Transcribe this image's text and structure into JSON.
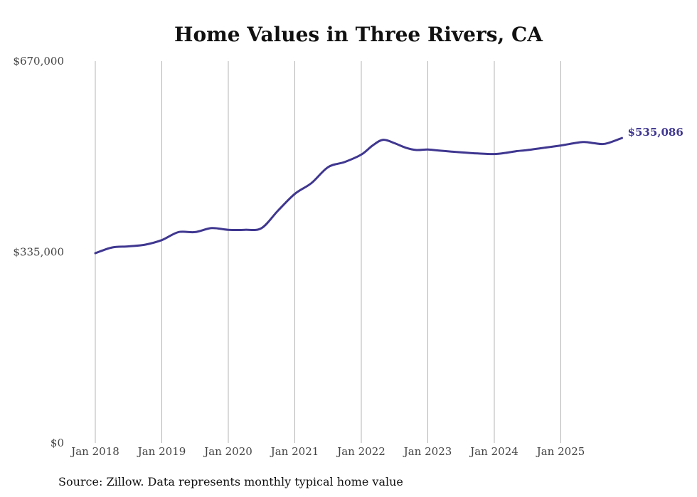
{
  "chart_data": {
    "type": "line",
    "title": "Home Values in Three Rivers, CA",
    "source": "Source: Zillow. Data represents monthly typical home value",
    "ylim": [
      0,
      670000
    ],
    "yticks": [
      {
        "value": 0,
        "label": "$0"
      },
      {
        "value": 335000,
        "label": "$335,000"
      },
      {
        "value": 670000,
        "label": "$670,000"
      }
    ],
    "xlim": [
      2018.0,
      2026.0
    ],
    "xticks": [
      {
        "value": 2018,
        "label": "Jan 2018"
      },
      {
        "value": 2019,
        "label": "Jan 2019"
      },
      {
        "value": 2020,
        "label": "Jan 2020"
      },
      {
        "value": 2021,
        "label": "Jan 2021"
      },
      {
        "value": 2022,
        "label": "Jan 2022"
      },
      {
        "value": 2023,
        "label": "Jan 2023"
      },
      {
        "value": 2024,
        "label": "Jan 2024"
      },
      {
        "value": 2025,
        "label": "Jan 2025"
      }
    ],
    "grid": "vertical",
    "line_color": "#3f3790",
    "end_label": "$535,086",
    "series": [
      {
        "name": "Typical home value",
        "x": [
          2018.0,
          2018.25,
          2018.5,
          2018.75,
          2019.0,
          2019.25,
          2019.5,
          2019.75,
          2020.0,
          2020.25,
          2020.5,
          2020.75,
          2021.0,
          2021.25,
          2021.5,
          2021.75,
          2022.0,
          2022.17,
          2022.33,
          2022.5,
          2022.67,
          2022.83,
          2023.0,
          2023.17,
          2023.5,
          2023.75,
          2024.0,
          2024.17,
          2024.33,
          2024.5,
          2024.75,
          2025.0,
          2025.33,
          2025.5,
          2025.67,
          2025.92
        ],
        "values": [
          333000,
          343000,
          345000,
          348000,
          356000,
          370000,
          370000,
          377000,
          374000,
          374000,
          377000,
          408000,
          437000,
          456000,
          484000,
          493000,
          506000,
          522000,
          532000,
          526000,
          518000,
          514000,
          515000,
          513000,
          510000,
          508000,
          507000,
          509000,
          512000,
          514000,
          518000,
          522000,
          528000,
          526000,
          525000,
          535086
        ]
      }
    ]
  }
}
